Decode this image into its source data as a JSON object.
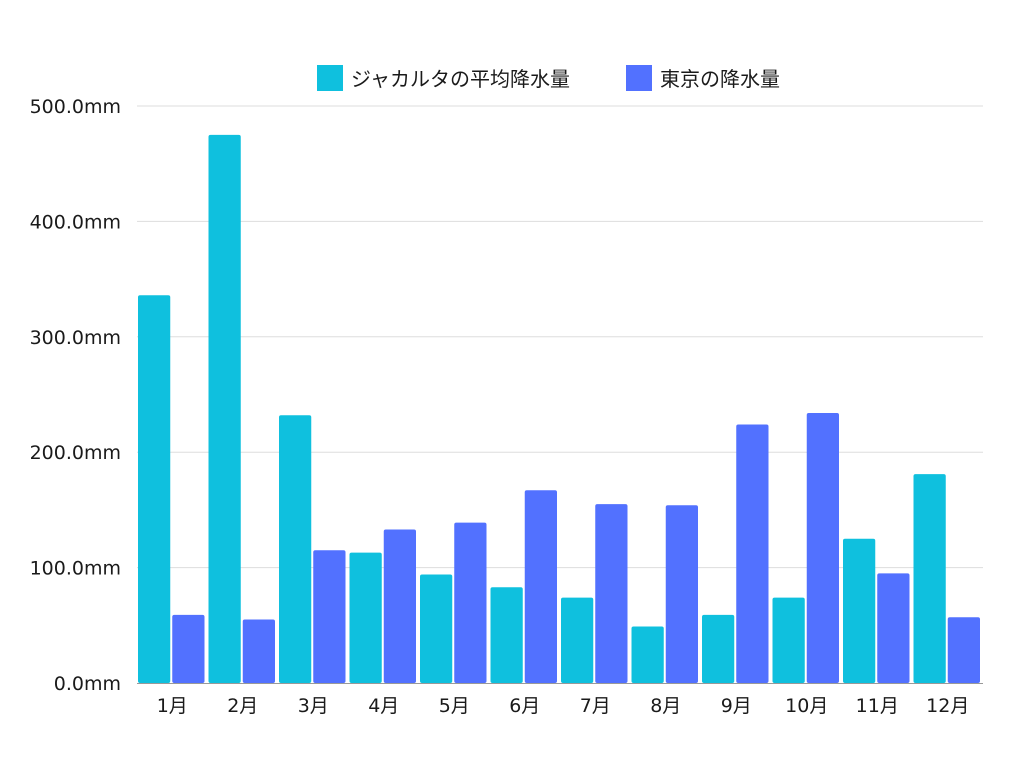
{
  "chart_data": {
    "type": "bar",
    "title": "",
    "xlabel": "",
    "ylabel": "",
    "categories": [
      "1月",
      "2月",
      "3月",
      "4月",
      "5月",
      "6月",
      "7月",
      "8月",
      "9月",
      "10月",
      "11月",
      "12月"
    ],
    "series": [
      {
        "name": "ジャカルタの平均降水量",
        "color": "#0fc0de",
        "values": [
          336,
          475,
          232,
          113,
          94,
          83,
          74,
          49,
          59,
          74,
          125,
          181
        ]
      },
      {
        "name": "東京の降水量",
        "color": "#5271ff",
        "values": [
          59,
          55,
          115,
          133,
          139,
          167,
          155,
          154,
          224,
          234,
          95,
          57
        ]
      }
    ],
    "ylim": [
      0,
      500
    ],
    "yticks": [
      0,
      100,
      200,
      300,
      400,
      500
    ],
    "ytick_labels": [
      "0.0mm",
      "100.0mm",
      "200.0mm",
      "300.0mm",
      "400.0mm",
      "500.0mm"
    ],
    "grid": true,
    "legend_position": "top-center",
    "gridline_color": "#dddddd",
    "axis_color": "#999999"
  }
}
